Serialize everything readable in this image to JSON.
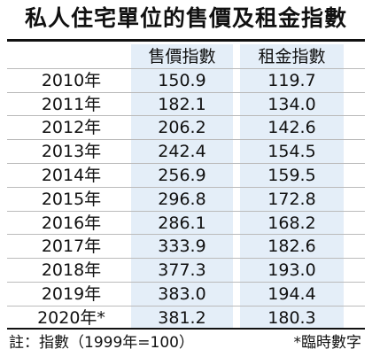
{
  "header": {
    "title": "私人住宅單位的售價及租金指數"
  },
  "table": {
    "columns": [
      "售價指數",
      "租金指數"
    ],
    "rows": [
      [
        "2010年",
        "150.9",
        "119.7"
      ],
      [
        "2011年",
        "182.1",
        "134.0"
      ],
      [
        "2012年",
        "206.2",
        "142.6"
      ],
      [
        "2013年",
        "242.4",
        "154.5"
      ],
      [
        "2014年",
        "256.9",
        "159.5"
      ],
      [
        "2015年",
        "296.8",
        "172.8"
      ],
      [
        "2016年",
        "286.1",
        "168.2"
      ],
      [
        "2017年",
        "333.9",
        "182.6"
      ],
      [
        "2018年",
        "377.3",
        "193.0"
      ],
      [
        "2019年",
        "383.0",
        "194.4"
      ],
      [
        "2020年*",
        "381.2",
        "180.3"
      ]
    ]
  },
  "footer": {
    "note": "註：指數（1999年=100）",
    "asterisk": "*臨時數字"
  }
}
